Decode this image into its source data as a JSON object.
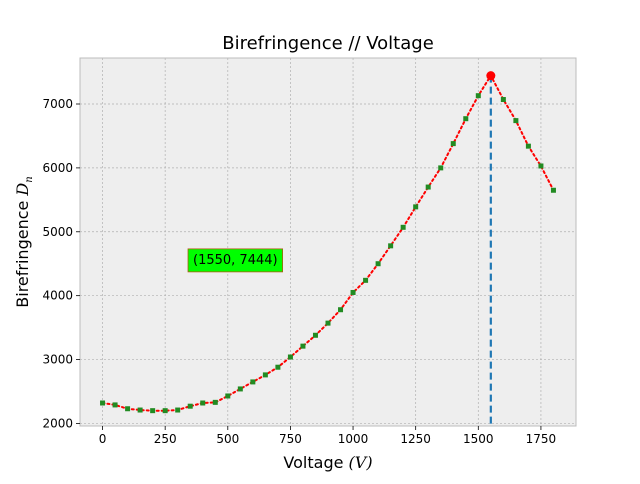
{
  "chart_data": {
    "type": "line",
    "title": "Birefringence // Voltage",
    "xlabel_text": "Voltage",
    "xlabel_math": "(V)",
    "ylabel_text": "Birefringence",
    "ylabel_math": "D",
    "ylabel_math_sub": "n",
    "xlim": [
      -90,
      1890
    ],
    "ylim": [
      1960,
      7720
    ],
    "xticks": [
      0,
      250,
      500,
      750,
      1000,
      1250,
      1500,
      1750
    ],
    "yticks": [
      2000,
      3000,
      4000,
      5000,
      6000,
      7000
    ],
    "grid": true,
    "peak": {
      "x": 1550,
      "y": 7444,
      "label": "(1550, 7444)"
    },
    "annotation_anchor": {
      "x": 530,
      "y": 4560
    },
    "series": [
      {
        "x": [
          0,
          50,
          100,
          150,
          200,
          250,
          300,
          350,
          400,
          450,
          500,
          550,
          600,
          650,
          700,
          750,
          800,
          850,
          900,
          950,
          1000,
          1050,
          1100,
          1150,
          1200,
          1250,
          1300,
          1350,
          1400,
          1450,
          1500,
          1550,
          1600,
          1650,
          1700,
          1750,
          1800
        ],
        "y": [
          2320,
          2290,
          2230,
          2210,
          2200,
          2200,
          2210,
          2270,
          2320,
          2330,
          2430,
          2540,
          2650,
          2760,
          2880,
          3040,
          3210,
          3380,
          3570,
          3780,
          4050,
          4240,
          4500,
          4780,
          5070,
          5390,
          5700,
          6000,
          6380,
          6770,
          7130,
          7444,
          7070,
          6740,
          6340,
          6030,
          5650
        ]
      }
    ],
    "colors": {
      "line": "#ff0000",
      "marker": "#228b22",
      "peak": "#ff0000",
      "vline": "#1f77b4",
      "label_bg": "#00ff00",
      "axes_bg": "#eeeeee",
      "grid": "#b0b0b0"
    }
  }
}
